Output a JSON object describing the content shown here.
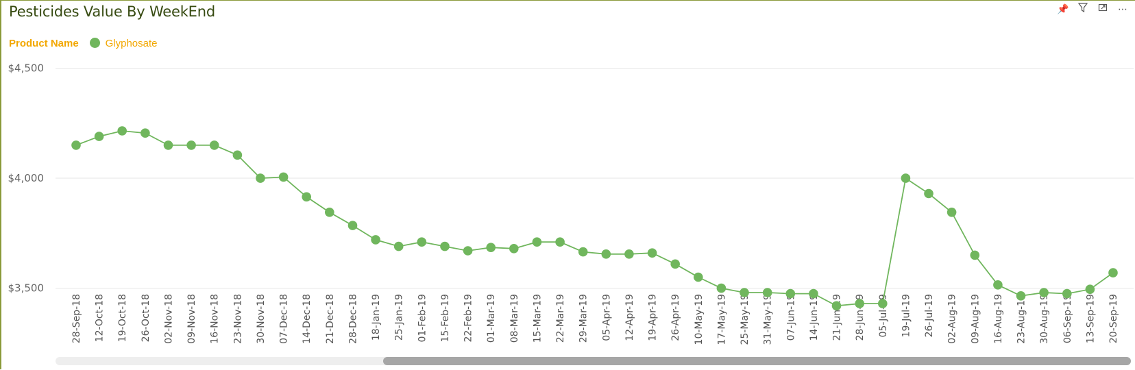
{
  "title": "Pesticides Value By WeekEnd",
  "legend": {
    "title": "Product Name",
    "items": [
      {
        "label": "Glyphosate",
        "color": "#70b65d"
      }
    ]
  },
  "header_icons": [
    "pin-icon",
    "filter-icon",
    "focus-mode-icon",
    "more-options-icon"
  ],
  "colors": {
    "series": "#70b65d",
    "title": "#374b12",
    "legend_text": "#f2a700",
    "border": "#8a9a3a"
  },
  "chart_data": {
    "type": "line",
    "title": "Pesticides Value By WeekEnd",
    "xlabel": "",
    "ylabel": "",
    "y_ticks": [
      3500,
      4000,
      4500
    ],
    "y_tick_labels": [
      "$3,500",
      "$4,000",
      "$4,500"
    ],
    "ylim": [
      3290,
      4620
    ],
    "grid": true,
    "legend_position": "top-left",
    "categories": [
      "28-Sep-18",
      "12-Oct-18",
      "19-Oct-18",
      "26-Oct-18",
      "02-Nov-18",
      "09-Nov-18",
      "16-Nov-18",
      "23-Nov-18",
      "30-Nov-18",
      "07-Dec-18",
      "14-Dec-18",
      "21-Dec-18",
      "28-Dec-18",
      "18-Jan-19",
      "25-Jan-19",
      "01-Feb-19",
      "15-Feb-19",
      "22-Feb-19",
      "01-Mar-19",
      "08-Mar-19",
      "15-Mar-19",
      "22-Mar-19",
      "29-Mar-19",
      "05-Apr-19",
      "12-Apr-19",
      "19-Apr-19",
      "26-Apr-19",
      "10-May-19",
      "17-May-19",
      "25-May-19",
      "31-May-19",
      "07-Jun-19",
      "14-Jun-19",
      "21-Jun-19",
      "28-Jun-19",
      "05-Jul-19",
      "19-Jul-19",
      "26-Jul-19",
      "02-Aug-19",
      "09-Aug-19",
      "16-Aug-19",
      "23-Aug-19",
      "30-Aug-19",
      "06-Sep-19",
      "13-Sep-19",
      "20-Sep-19"
    ],
    "series": [
      {
        "name": "Glyphosate",
        "color": "#70b65d",
        "values": [
          4150,
          4190,
          4215,
          4205,
          4150,
          4150,
          4150,
          4105,
          4000,
          4005,
          3915,
          3845,
          3785,
          3720,
          3690,
          3710,
          3690,
          3670,
          3685,
          3680,
          3710,
          3710,
          3665,
          3655,
          3655,
          3660,
          3610,
          3550,
          3500,
          3480,
          3480,
          3475,
          3475,
          3420,
          3430,
          3430,
          4000,
          3930,
          3845,
          3650,
          3515,
          3465,
          3480,
          3475,
          3495,
          3570
        ]
      }
    ]
  }
}
